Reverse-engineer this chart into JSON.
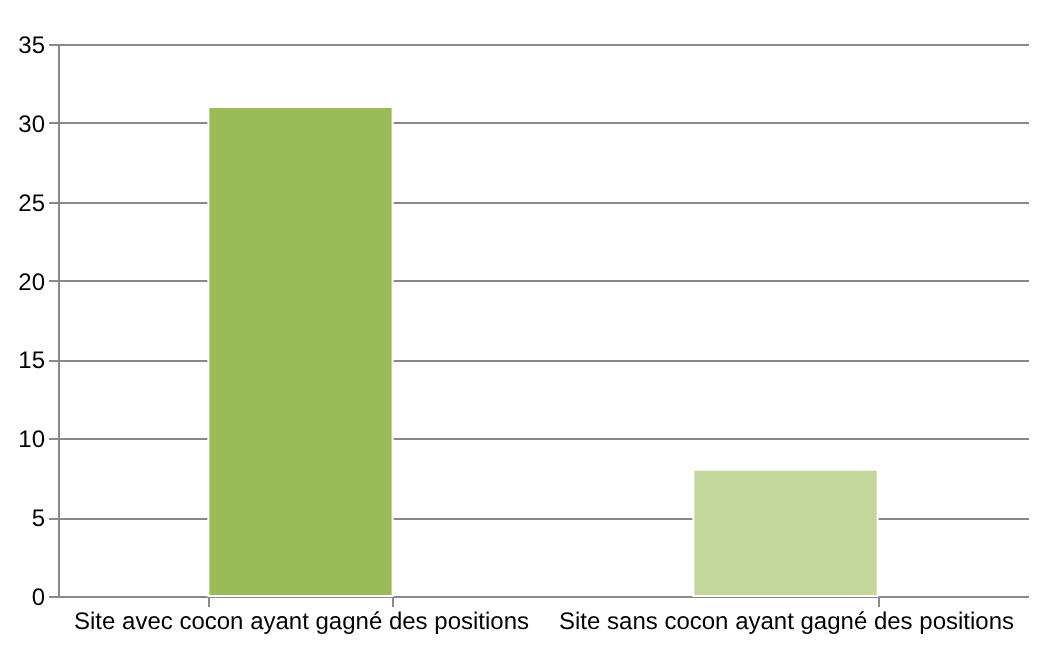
{
  "chart_data": {
    "type": "bar",
    "categories": [
      "Site avec cocon ayant gagné des positions",
      "Site sans cocon ayant gagné des positions"
    ],
    "values": [
      31,
      8
    ],
    "colors": [
      "#9bbb59",
      "#c3d69b"
    ],
    "ylim": [
      0,
      35
    ],
    "yticks": [
      0,
      5,
      10,
      15,
      20,
      25,
      30,
      35
    ],
    "grid": "y"
  }
}
